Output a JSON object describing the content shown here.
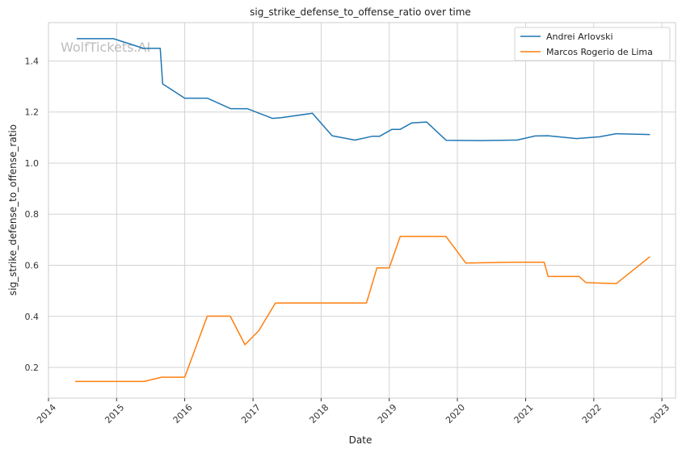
{
  "chart_data": {
    "type": "line",
    "title": "sig_strike_defense_to_offense_ratio over time",
    "xlabel": "Date",
    "ylabel": "sig_strike_defense_to_offense_ratio",
    "watermark": "WolfTickets.AI",
    "xlim": [
      "2014-01-01",
      "2023-03-15"
    ],
    "ylim": [
      0.08,
      1.55
    ],
    "x_ticks": [
      "2014",
      "2015",
      "2016",
      "2017",
      "2018",
      "2019",
      "2020",
      "2021",
      "2022",
      "2023"
    ],
    "y_ticks": [
      0.2,
      0.4,
      0.6,
      0.8,
      1.0,
      1.2,
      1.4
    ],
    "grid": true,
    "legend_position": "top-right",
    "series": [
      {
        "name": "Andrei Arlovski",
        "color": "#1f77b4",
        "points": [
          [
            "2014-06-01",
            1.487
          ],
          [
            "2014-12-15",
            1.487
          ],
          [
            "2015-05-25",
            1.449
          ],
          [
            "2015-08-23",
            1.449
          ],
          [
            "2015-09-05",
            1.31
          ],
          [
            "2016-01-01",
            1.254
          ],
          [
            "2016-05-01",
            1.254
          ],
          [
            "2016-06-04",
            1.243
          ],
          [
            "2016-09-03",
            1.213
          ],
          [
            "2016-12-01",
            1.213
          ],
          [
            "2017-04-15",
            1.175
          ],
          [
            "2017-06-01",
            1.178
          ],
          [
            "2017-11-15",
            1.195
          ],
          [
            "2018-03-01",
            1.107
          ],
          [
            "2018-07-01",
            1.09
          ],
          [
            "2018-10-01",
            1.105
          ],
          [
            "2018-11-10",
            1.105
          ],
          [
            "2019-01-15",
            1.132
          ],
          [
            "2019-03-01",
            1.132
          ],
          [
            "2019-05-01",
            1.157
          ],
          [
            "2019-07-20",
            1.161
          ],
          [
            "2019-11-02",
            1.089
          ],
          [
            "2020-05-01",
            1.088
          ],
          [
            "2020-11-15",
            1.09
          ],
          [
            "2021-02-20",
            1.106
          ],
          [
            "2021-05-01",
            1.107
          ],
          [
            "2021-10-01",
            1.096
          ],
          [
            "2022-02-01",
            1.103
          ],
          [
            "2022-04-30",
            1.115
          ],
          [
            "2022-10-29",
            1.112
          ]
        ]
      },
      {
        "name": "Marcos Rogerio de Lima",
        "color": "#ff7f0e",
        "points": [
          [
            "2014-05-24",
            0.145
          ],
          [
            "2015-05-30",
            0.145
          ],
          [
            "2015-08-30",
            0.162
          ],
          [
            "2016-01-01",
            0.162
          ],
          [
            "2016-05-01",
            0.401
          ],
          [
            "2016-09-01",
            0.401
          ],
          [
            "2016-11-19",
            0.289
          ],
          [
            "2017-02-01",
            0.344
          ],
          [
            "2017-05-01",
            0.452
          ],
          [
            "2018-09-01",
            0.452
          ],
          [
            "2018-10-27",
            0.59
          ],
          [
            "2019-01-01",
            0.59
          ],
          [
            "2019-03-01",
            0.713
          ],
          [
            "2019-11-01",
            0.713
          ],
          [
            "2020-02-15",
            0.609
          ],
          [
            "2020-11-01",
            0.612
          ],
          [
            "2021-04-10",
            0.612
          ],
          [
            "2021-05-01",
            0.556
          ],
          [
            "2021-10-15",
            0.556
          ],
          [
            "2021-11-20",
            0.532
          ],
          [
            "2022-05-01",
            0.528
          ],
          [
            "2022-10-29",
            0.634
          ]
        ]
      }
    ]
  }
}
